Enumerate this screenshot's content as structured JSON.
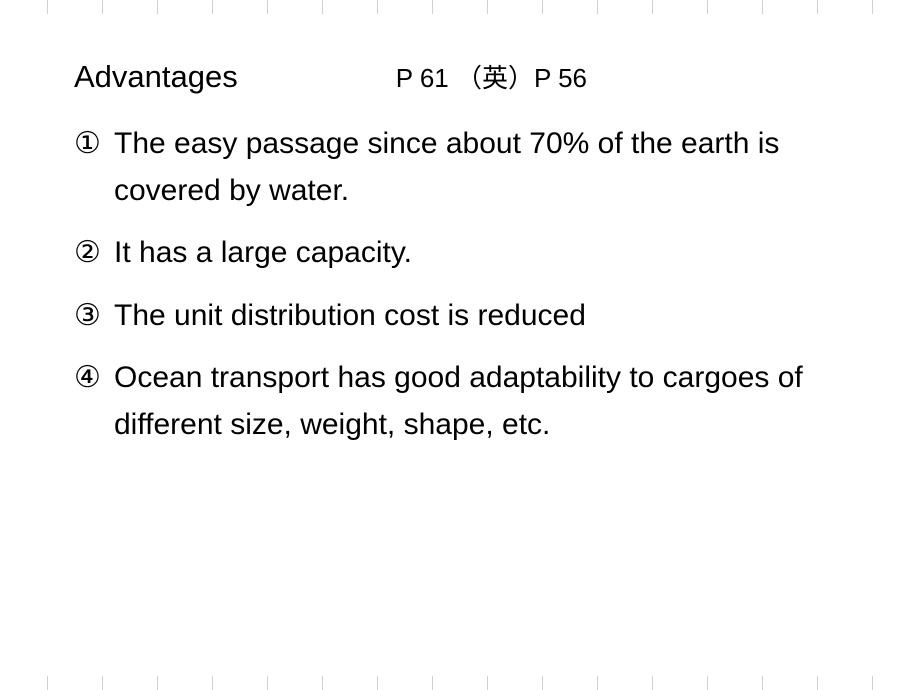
{
  "background_color": "#ffffff",
  "text_color": "#000000",
  "tick_color": "#d0d0d0",
  "tick_count": 16,
  "header": {
    "heading": "Advantages",
    "page_refs": "P 61   （英）P 56"
  },
  "items": [
    {
      "marker": "①",
      "text": "The easy passage since about 70% of the earth is covered by water."
    },
    {
      "marker": "②",
      "text": "It has a large capacity."
    },
    {
      "marker": "③",
      "text": "The unit distribution cost is reduced"
    },
    {
      "marker": "④",
      "text": "Ocean transport has good adaptability to cargoes of different size, weight, shape, etc."
    }
  ]
}
